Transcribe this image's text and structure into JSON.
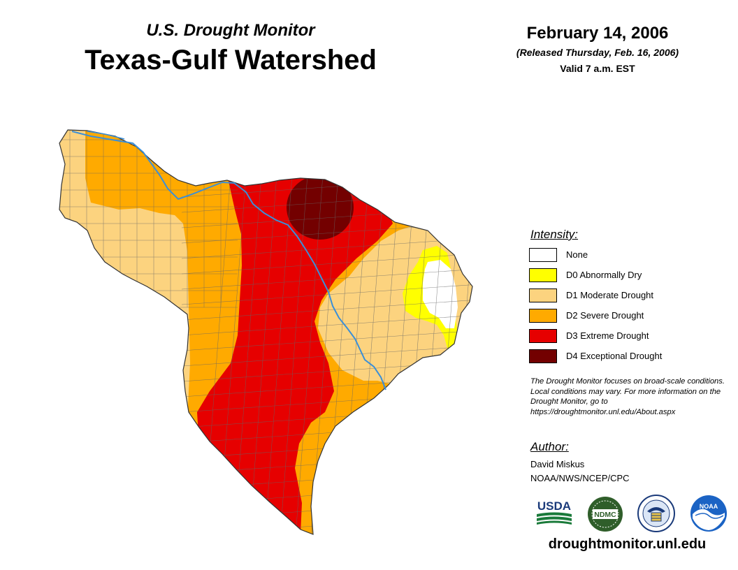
{
  "header": {
    "subtitle": "U.S. Drought Monitor",
    "title": "Texas-Gulf Watershed",
    "date": "February 14, 2006",
    "released": "(Released Thursday, Feb. 16, 2006)",
    "valid": "Valid 7 a.m. EST"
  },
  "legend": {
    "heading": "Intensity:",
    "items": [
      {
        "label": "None",
        "color": "#ffffff"
      },
      {
        "label": "D0 Abnormally Dry",
        "color": "#ffff00"
      },
      {
        "label": "D1 Moderate Drought",
        "color": "#fcd37f"
      },
      {
        "label": "D2 Severe Drought",
        "color": "#ffaa00"
      },
      {
        "label": "D3 Extreme Drought",
        "color": "#e60000"
      },
      {
        "label": "D4 Exceptional Drought",
        "color": "#730000"
      }
    ]
  },
  "note": "The Drought Monitor focuses on broad-scale conditions. Local conditions may vary. For more information on the Drought Monitor, go to https://droughtmonitor.unl.edu/About.aspx",
  "author": {
    "heading": "Author:",
    "name": "David Miskus",
    "org": "NOAA/NWS/NCEP/CPC"
  },
  "logos": {
    "usda": "USDA",
    "ndmc": "NDMC",
    "noaa": "NOAA"
  },
  "website": "droughtmonitor.unl.edu",
  "colors": {
    "river": "#3a8fd8",
    "county_line": "#666666",
    "outline": "#333333"
  }
}
